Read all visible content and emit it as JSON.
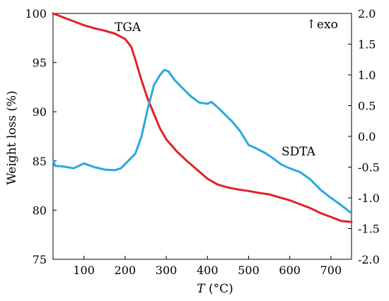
{
  "chart_data": {
    "type": "line",
    "title": "",
    "xlabel": {
      "italic": "T",
      "rest": " (°C)"
    },
    "ylabel_left": "Weight loss (%)",
    "ylabel_right": "",
    "xlim": [
      25,
      750
    ],
    "ylim_left": [
      75,
      100
    ],
    "ylim_right": [
      -2.0,
      2.0
    ],
    "x_ticks": [
      100,
      200,
      300,
      400,
      500,
      600,
      700
    ],
    "y_left_ticks": [
      75,
      80,
      85,
      90,
      95,
      100
    ],
    "y_right_ticks": [
      -2.0,
      -1.5,
      -1.0,
      -0.5,
      0.0,
      0.5,
      1.0,
      1.5,
      2.0
    ],
    "y_right_tick_labels": [
      "-2.0",
      "-1.5",
      "-1.0",
      "-0.5",
      "0.0",
      "0.5",
      "1.0",
      "1.5",
      "2.0"
    ],
    "grid": false,
    "annotations": {
      "tga_label": "TGA",
      "sdta_label": "SDTA",
      "exo_arrow": "↑",
      "exo_text": "exo"
    },
    "series": [
      {
        "name": "TGA",
        "axis": "left",
        "color": "#e0202a",
        "points": [
          [
            25,
            100.0
          ],
          [
            50,
            99.6
          ],
          [
            75,
            99.2
          ],
          [
            100,
            98.8
          ],
          [
            125,
            98.5
          ],
          [
            150,
            98.25
          ],
          [
            175,
            97.95
          ],
          [
            200,
            97.4
          ],
          [
            215,
            96.6
          ],
          [
            225,
            95.3
          ],
          [
            240,
            93.2
          ],
          [
            255,
            91.3
          ],
          [
            270,
            89.8
          ],
          [
            285,
            88.3
          ],
          [
            300,
            87.2
          ],
          [
            325,
            86.0
          ],
          [
            350,
            85.0
          ],
          [
            375,
            84.1
          ],
          [
            400,
            83.2
          ],
          [
            425,
            82.6
          ],
          [
            450,
            82.3
          ],
          [
            475,
            82.1
          ],
          [
            500,
            81.95
          ],
          [
            525,
            81.75
          ],
          [
            550,
            81.6
          ],
          [
            575,
            81.3
          ],
          [
            600,
            81.0
          ],
          [
            625,
            80.6
          ],
          [
            650,
            80.2
          ],
          [
            675,
            79.7
          ],
          [
            700,
            79.3
          ],
          [
            725,
            78.9
          ],
          [
            750,
            78.8
          ]
        ]
      },
      {
        "name": "SDTA",
        "axis": "right",
        "color": "#29a8e0",
        "points": [
          [
            25,
            -0.38
          ],
          [
            30,
            -0.48
          ],
          [
            50,
            -0.49
          ],
          [
            75,
            -0.52
          ],
          [
            100,
            -0.44
          ],
          [
            125,
            -0.5
          ],
          [
            150,
            -0.54
          ],
          [
            175,
            -0.55
          ],
          [
            190,
            -0.52
          ],
          [
            200,
            -0.45
          ],
          [
            225,
            -0.28
          ],
          [
            240,
            0.0
          ],
          [
            255,
            0.45
          ],
          [
            270,
            0.83
          ],
          [
            285,
            1.0
          ],
          [
            295,
            1.08
          ],
          [
            305,
            1.06
          ],
          [
            320,
            0.92
          ],
          [
            340,
            0.78
          ],
          [
            360,
            0.65
          ],
          [
            380,
            0.55
          ],
          [
            400,
            0.53
          ],
          [
            410,
            0.56
          ],
          [
            430,
            0.44
          ],
          [
            460,
            0.24
          ],
          [
            480,
            0.08
          ],
          [
            500,
            -0.14
          ],
          [
            520,
            -0.2
          ],
          [
            540,
            -0.27
          ],
          [
            560,
            -0.36
          ],
          [
            580,
            -0.46
          ],
          [
            600,
            -0.52
          ],
          [
            625,
            -0.58
          ],
          [
            650,
            -0.7
          ],
          [
            675,
            -0.87
          ],
          [
            700,
            -1.0
          ],
          [
            725,
            -1.12
          ],
          [
            750,
            -1.25
          ]
        ]
      }
    ]
  }
}
